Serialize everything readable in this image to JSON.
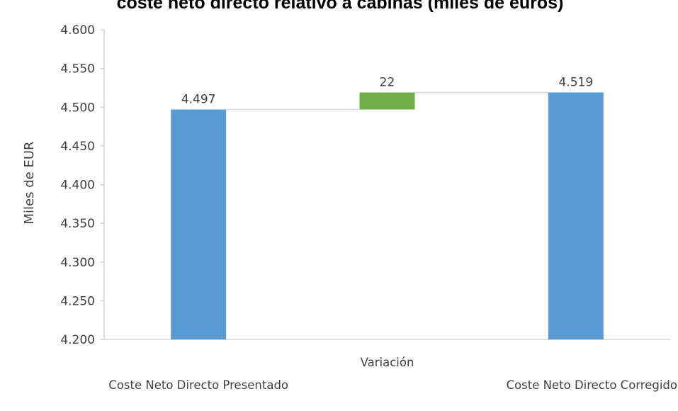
{
  "chart_data": {
    "type": "bar",
    "subtype": "waterfall",
    "title": "coste neto directo relativo a cabinas (miles de euros)",
    "xlabel": "",
    "ylabel": "Miles de EUR",
    "ylim": [
      4200,
      4600
    ],
    "y_ticks": [
      4200,
      4250,
      4300,
      4350,
      4400,
      4450,
      4500,
      4550,
      4600
    ],
    "y_tick_labels": [
      "4.200",
      "4.250",
      "4.300",
      "4.350",
      "4.400",
      "4.450",
      "4.500",
      "4.550",
      "4.600"
    ],
    "grid": false,
    "categories": [
      "Coste Neto Directo Presentado",
      "Variación",
      "Coste Neto Directo Corregido"
    ],
    "bars": [
      {
        "category": "Coste Neto Directo Presentado",
        "kind": "total",
        "start": 4200,
        "end": 4497,
        "label": "4.497",
        "color": "#5b9bd5"
      },
      {
        "category": "Variación",
        "kind": "increase",
        "start": 4497,
        "end": 4519,
        "label": "22",
        "color": "#70ad47"
      },
      {
        "category": "Coste Neto Directo Corregido",
        "kind": "total",
        "start": 4200,
        "end": 4519,
        "label": "4.519",
        "color": "#5b9bd5"
      }
    ],
    "colors": {
      "total": "#5b9bd5",
      "increase": "#70ad47",
      "axis": "#bfbfbf",
      "text": "#404040"
    }
  }
}
